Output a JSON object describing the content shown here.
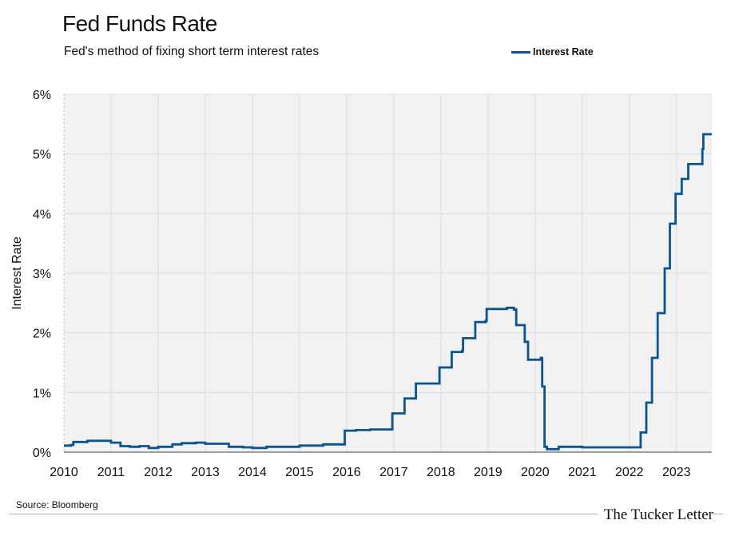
{
  "title": "Fed Funds Rate",
  "subtitle": "Fed's method of fixing short term interest rates",
  "source": "Source: Bloomberg",
  "brand": "The Tucker Letter",
  "colors": {
    "line": "#0b5391",
    "plot_bg": "#f2f2f2",
    "grid": "#dddddd"
  },
  "chart_data": {
    "type": "line",
    "title": "Fed Funds Rate",
    "subtitle": "Fed's method of fixing short term interest rates",
    "ylabel": "Interest Rate",
    "xlabel": "",
    "xlim": [
      2010,
      2023.75
    ],
    "ylim": [
      0,
      6
    ],
    "grid": true,
    "legend": "top-right",
    "x_ticks": [
      2010,
      2011,
      2012,
      2013,
      2014,
      2015,
      2016,
      2017,
      2018,
      2019,
      2020,
      2021,
      2022,
      2023
    ],
    "x_tick_labels": [
      "2010",
      "2011",
      "2012",
      "2013",
      "2014",
      "2015",
      "2016",
      "2017",
      "2018",
      "2019",
      "2020",
      "2021",
      "2022",
      "2023"
    ],
    "y_ticks": [
      0,
      1,
      2,
      3,
      4,
      5,
      6
    ],
    "y_tick_labels": [
      "0%",
      "1%",
      "2%",
      "3%",
      "4%",
      "5%",
      "6%"
    ],
    "series": [
      {
        "name": "Interest Rate",
        "x": [
          2010.0,
          2010.15,
          2010.2,
          2010.5,
          2010.7,
          2010.9,
          2011.0,
          2011.2,
          2011.4,
          2011.6,
          2011.8,
          2012.0,
          2012.3,
          2012.5,
          2012.8,
          2013.0,
          2013.3,
          2013.5,
          2013.8,
          2014.0,
          2014.3,
          2014.5,
          2014.8,
          2015.0,
          2015.5,
          2015.9,
          2015.96,
          2016.2,
          2016.5,
          2016.9,
          2016.97,
          2017.2,
          2017.23,
          2017.45,
          2017.47,
          2017.95,
          2017.97,
          2018.2,
          2018.23,
          2018.45,
          2018.47,
          2018.7,
          2018.73,
          2018.95,
          2018.97,
          2019.2,
          2019.4,
          2019.55,
          2019.6,
          2019.75,
          2019.78,
          2019.85,
          2020.12,
          2020.15,
          2020.2,
          2020.25,
          2020.3,
          2020.5,
          2021.0,
          2021.5,
          2022.0,
          2022.2,
          2022.24,
          2022.33,
          2022.36,
          2022.45,
          2022.48,
          2022.58,
          2022.6,
          2022.72,
          2022.75,
          2022.83,
          2022.86,
          2022.95,
          2022.98,
          2023.08,
          2023.11,
          2023.22,
          2023.25,
          2023.55,
          2023.57,
          2023.75
        ],
        "y": [
          0.11,
          0.12,
          0.17,
          0.19,
          0.19,
          0.19,
          0.16,
          0.1,
          0.09,
          0.1,
          0.07,
          0.09,
          0.13,
          0.15,
          0.16,
          0.14,
          0.14,
          0.09,
          0.08,
          0.07,
          0.09,
          0.09,
          0.09,
          0.11,
          0.13,
          0.13,
          0.36,
          0.37,
          0.38,
          0.38,
          0.65,
          0.65,
          0.9,
          0.9,
          1.15,
          1.15,
          1.42,
          1.42,
          1.68,
          1.7,
          1.91,
          1.91,
          2.18,
          2.2,
          2.4,
          2.4,
          2.42,
          2.39,
          2.13,
          2.13,
          1.85,
          1.55,
          1.58,
          1.1,
          0.09,
          0.05,
          0.05,
          0.09,
          0.08,
          0.08,
          0.08,
          0.08,
          0.33,
          0.33,
          0.83,
          0.83,
          1.58,
          1.58,
          2.33,
          2.33,
          3.08,
          3.08,
          3.83,
          3.83,
          4.33,
          4.33,
          4.58,
          4.58,
          4.83,
          5.08,
          5.33,
          5.33
        ]
      }
    ]
  }
}
